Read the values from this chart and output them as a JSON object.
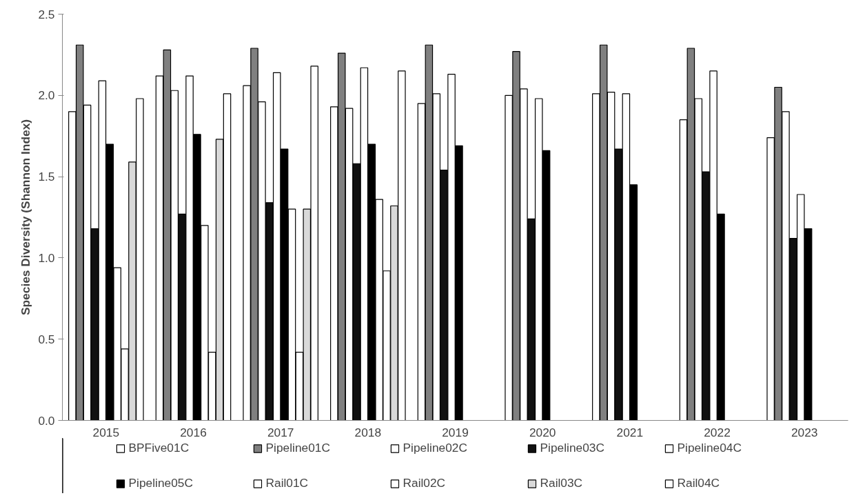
{
  "chart_data": {
    "type": "bar",
    "ylabel": "Species Diversity (Shannon Index)",
    "categories": [
      "2015",
      "2016",
      "2017",
      "2018",
      "2019",
      "2020",
      "2021",
      "2022",
      "2023"
    ],
    "ylim": [
      0,
      2.5
    ],
    "yticks": [
      {
        "value": 0,
        "label": "0.0"
      },
      {
        "value": 0.5,
        "label": "0.5"
      },
      {
        "value": 1,
        "label": "1.0"
      },
      {
        "value": 1.5,
        "label": "1.5"
      },
      {
        "value": 2,
        "label": "2.0"
      },
      {
        "value": 2.5,
        "label": "2.5"
      }
    ],
    "grid": false,
    "legend": "bottom",
    "series": [
      {
        "name": "BPFive01C",
        "color": "#ffffff",
        "values": [
          1.9,
          2.12,
          2.06,
          1.93,
          1.95,
          2.0,
          2.01,
          1.85,
          1.74
        ]
      },
      {
        "name": "Pipeline01C",
        "color": "#808080",
        "values": [
          2.31,
          2.28,
          2.29,
          2.26,
          2.31,
          2.27,
          2.31,
          2.29,
          2.05
        ]
      },
      {
        "name": "Pipeline02C",
        "color": "#ffffff",
        "values": [
          1.94,
          2.03,
          1.96,
          1.92,
          2.01,
          2.04,
          2.02,
          1.98,
          1.9
        ]
      },
      {
        "name": "Pipeline03C",
        "color": "#111111",
        "values": [
          1.18,
          1.27,
          1.34,
          1.58,
          1.54,
          1.24,
          1.67,
          1.53,
          1.12
        ]
      },
      {
        "name": "Pipeline04C",
        "color": "#ffffff",
        "values": [
          2.09,
          2.12,
          2.14,
          2.17,
          2.13,
          1.98,
          2.01,
          2.15,
          1.39
        ]
      },
      {
        "name": "Pipeline05C",
        "color": "#000000",
        "values": [
          1.7,
          1.76,
          1.67,
          1.7,
          1.69,
          1.66,
          1.45,
          1.27,
          1.18
        ]
      },
      {
        "name": "Rail01C",
        "color": "#ffffff",
        "values": [
          0.94,
          1.2,
          1.3,
          1.36,
          null,
          null,
          null,
          null,
          null
        ]
      },
      {
        "name": "Rail02C",
        "color": "#ffffff",
        "values": [
          0.44,
          0.42,
          0.42,
          0.92,
          null,
          null,
          null,
          null,
          null
        ]
      },
      {
        "name": "Rail03C",
        "color": "#d9d9d9",
        "values": [
          1.59,
          1.73,
          1.3,
          1.32,
          null,
          null,
          null,
          null,
          null
        ]
      },
      {
        "name": "Rail04C",
        "color": "#ffffff",
        "values": [
          1.98,
          2.01,
          2.18,
          2.15,
          null,
          null,
          null,
          null,
          null
        ]
      }
    ]
  }
}
